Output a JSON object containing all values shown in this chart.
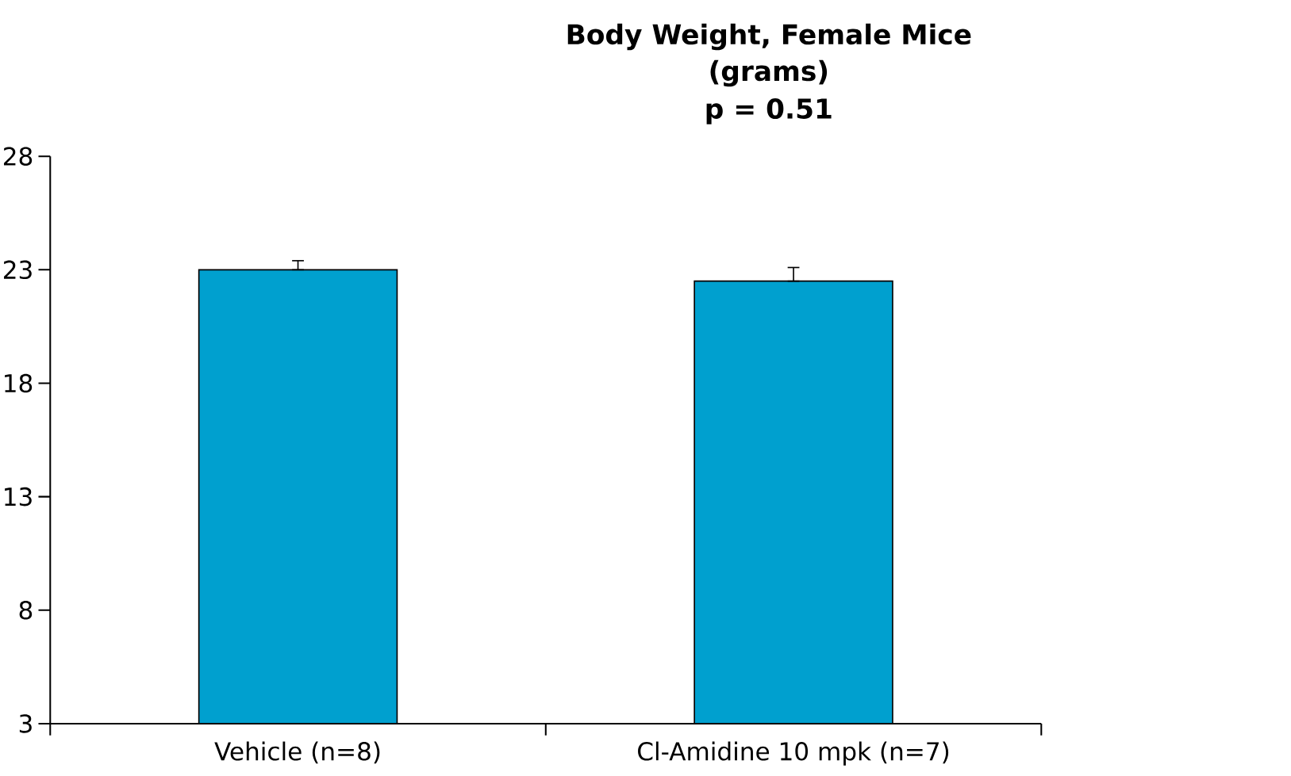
{
  "chart_data": {
    "type": "bar",
    "title": "Body Weight, Female Mice",
    "subtitle": "(grams)",
    "annotations": [
      "p = 0.51"
    ],
    "categories": [
      "Vehicle (n=8)",
      "Cl-Amidine 10 mpk (n=7)"
    ],
    "values": [
      23.0,
      22.5
    ],
    "errors": [
      [
        23.0,
        23.4
      ],
      [
        22.5,
        23.1
      ]
    ],
    "color": "#00a0cf",
    "ylim": [
      3,
      28
    ],
    "yticks": [
      3,
      8,
      13,
      18,
      23,
      28
    ],
    "grid": false
  }
}
